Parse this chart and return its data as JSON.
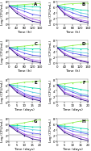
{
  "panels": [
    {
      "label": "A",
      "xlabel": "Time (h)",
      "ylabel": "Log (CFU/mL)",
      "xlim": [
        0,
        160
      ],
      "ylim": [
        0,
        8
      ],
      "xticks": [
        0,
        40,
        80,
        120,
        160
      ],
      "yticks": [
        0,
        2,
        4,
        6,
        8
      ],
      "hband": [
        1.8,
        2.5
      ],
      "lines": [
        {
          "x": [
            0,
            40,
            80,
            120,
            160
          ],
          "y": [
            6.5,
            6.7,
            6.9,
            7.1,
            7.2
          ],
          "color": "#88ee44",
          "marker": "s",
          "ls": "-"
        },
        {
          "x": [
            0,
            40,
            80,
            120,
            160
          ],
          "y": [
            6.5,
            6.4,
            6.3,
            6.1,
            6.0
          ],
          "color": "#00ddaa",
          "marker": "s",
          "ls": "-"
        },
        {
          "x": [
            0,
            40,
            80,
            120,
            160
          ],
          "y": [
            6.5,
            6.0,
            5.5,
            5.0,
            4.7
          ],
          "color": "#55ccdd",
          "marker": "s",
          "ls": "-"
        },
        {
          "x": [
            0,
            40,
            80,
            120,
            160
          ],
          "y": [
            6.5,
            5.5,
            4.5,
            3.5,
            3.0
          ],
          "color": "#5555ee",
          "marker": "s",
          "ls": "-"
        },
        {
          "x": [
            0,
            40,
            80,
            120,
            160
          ],
          "y": [
            6.5,
            4.5,
            3.0,
            1.8,
            1.2
          ],
          "color": "#aa55ee",
          "marker": "s",
          "ls": "-"
        },
        {
          "x": [
            0,
            40,
            80,
            120,
            160
          ],
          "y": [
            6.5,
            3.8,
            2.2,
            1.0,
            0.5
          ],
          "color": "#220077",
          "marker": "s",
          "ls": "-"
        }
      ]
    },
    {
      "label": "B",
      "xlabel": "Time (h)",
      "ylabel": "Log (CFU/mL)",
      "xlim": [
        0,
        160
      ],
      "ylim": [
        0,
        8
      ],
      "xticks": [
        0,
        40,
        80,
        120,
        160
      ],
      "yticks": [
        0,
        2,
        4,
        6,
        8
      ],
      "hband": [
        1.8,
        2.5
      ],
      "lines": [
        {
          "x": [
            0,
            40,
            80,
            120,
            160
          ],
          "y": [
            6.5,
            7.0,
            7.2,
            7.3,
            7.4
          ],
          "color": "#88ee44",
          "marker": "s",
          "ls": "-"
        },
        {
          "x": [
            0,
            40,
            80,
            120,
            160
          ],
          "y": [
            6.5,
            6.0,
            5.5,
            5.0,
            4.8
          ],
          "color": "#00ddaa",
          "marker": "s",
          "ls": "-"
        },
        {
          "x": [
            0,
            40,
            80,
            120,
            160
          ],
          "y": [
            6.5,
            5.5,
            5.0,
            4.0,
            3.5
          ],
          "color": "#55ccdd",
          "marker": "s",
          "ls": "-"
        },
        {
          "x": [
            0,
            40,
            80,
            120,
            160
          ],
          "y": [
            6.5,
            5.0,
            4.0,
            3.0,
            2.5
          ],
          "color": "#5555ee",
          "marker": "s",
          "ls": "-"
        },
        {
          "x": [
            0,
            40,
            80,
            120,
            160
          ],
          "y": [
            6.5,
            4.0,
            2.5,
            1.5,
            1.0
          ],
          "color": "#aa55ee",
          "marker": "s",
          "ls": "-"
        },
        {
          "x": [
            0,
            40,
            80,
            120,
            160
          ],
          "y": [
            6.5,
            3.5,
            2.0,
            1.0,
            0.5
          ],
          "color": "#220077",
          "marker": "s",
          "ls": "-"
        }
      ]
    },
    {
      "label": "C",
      "xlabel": "Time (h)",
      "ylabel": "Log (CFU/mL)",
      "xlim": [
        0,
        160
      ],
      "ylim": [
        0,
        8
      ],
      "xticks": [
        0,
        40,
        80,
        120,
        160
      ],
      "yticks": [
        0,
        2,
        4,
        6,
        8
      ],
      "hband": [
        1.8,
        2.5
      ],
      "lines": [
        {
          "x": [
            0,
            40,
            80,
            120,
            160
          ],
          "y": [
            5.5,
            5.8,
            6.0,
            6.3,
            6.5
          ],
          "color": "#88ee44",
          "marker": "s",
          "ls": "-"
        },
        {
          "x": [
            0,
            40,
            80,
            120,
            160
          ],
          "y": [
            5.5,
            5.3,
            5.2,
            5.0,
            5.0
          ],
          "color": "#00ddaa",
          "marker": "s",
          "ls": "-"
        },
        {
          "x": [
            0,
            40,
            80,
            120,
            160
          ],
          "y": [
            5.5,
            5.0,
            4.5,
            4.0,
            3.8
          ],
          "color": "#55ccdd",
          "marker": "s",
          "ls": "-"
        },
        {
          "x": [
            0,
            40,
            80,
            120,
            160
          ],
          "y": [
            5.5,
            4.5,
            3.5,
            2.8,
            2.5
          ],
          "color": "#5555ee",
          "marker": "s",
          "ls": "-"
        },
        {
          "x": [
            0,
            40,
            80,
            120,
            160
          ],
          "y": [
            5.5,
            3.5,
            2.0,
            1.2,
            0.8
          ],
          "color": "#aa55ee",
          "marker": "s",
          "ls": "-"
        },
        {
          "x": [
            0,
            40,
            80,
            120,
            160
          ],
          "y": [
            5.5,
            3.0,
            1.5,
            0.6,
            0.2
          ],
          "color": "#220077",
          "marker": "s",
          "ls": "-"
        }
      ]
    },
    {
      "label": "D",
      "xlabel": "Time (h)",
      "ylabel": "Log (CFU/mL)",
      "xlim": [
        0,
        160
      ],
      "ylim": [
        0,
        8
      ],
      "xticks": [
        0,
        40,
        80,
        120,
        160
      ],
      "yticks": [
        0,
        2,
        4,
        6,
        8
      ],
      "hband": [
        1.8,
        2.5
      ],
      "lines": [
        {
          "x": [
            0,
            40,
            80,
            120,
            160
          ],
          "y": [
            5.5,
            5.8,
            6.2,
            6.5,
            6.8
          ],
          "color": "#88ee44",
          "marker": "s",
          "ls": "-"
        },
        {
          "x": [
            0,
            40,
            80,
            120,
            160
          ],
          "y": [
            5.5,
            5.3,
            5.2,
            5.0,
            5.0
          ],
          "color": "#00ddaa",
          "marker": "s",
          "ls": "-"
        },
        {
          "x": [
            0,
            40,
            80,
            120,
            160
          ],
          "y": [
            5.5,
            4.8,
            4.2,
            3.8,
            3.5
          ],
          "color": "#55ccdd",
          "marker": "s",
          "ls": "-"
        },
        {
          "x": [
            0,
            40,
            80,
            120,
            160
          ],
          "y": [
            5.5,
            4.5,
            3.5,
            3.0,
            2.5
          ],
          "color": "#5555ee",
          "marker": "s",
          "ls": "-"
        },
        {
          "x": [
            0,
            40,
            80,
            120,
            160
          ],
          "y": [
            5.5,
            3.5,
            2.0,
            1.0,
            0.5
          ],
          "color": "#aa55ee",
          "marker": "s",
          "ls": "-"
        },
        {
          "x": [
            0,
            40,
            80,
            120,
            160
          ],
          "y": [
            5.5,
            3.0,
            1.8,
            0.8,
            0.2
          ],
          "color": "#220077",
          "marker": "s",
          "ls": "-"
        }
      ]
    },
    {
      "label": "E",
      "xlabel": "Time (days)",
      "ylabel": "Log (CFU/mL)",
      "xlim": [
        0,
        20
      ],
      "ylim": [
        0,
        8
      ],
      "xticks": [
        0,
        5,
        10,
        15,
        20
      ],
      "yticks": [
        0,
        2,
        4,
        6,
        8
      ],
      "hband": [
        1.8,
        2.5
      ],
      "lines": [
        {
          "x": [
            0,
            5,
            10,
            15,
            20
          ],
          "y": [
            6.2,
            6.6,
            7.0,
            7.2,
            7.5
          ],
          "color": "#88ee44",
          "marker": "s",
          "ls": "-"
        },
        {
          "x": [
            0,
            5,
            10,
            15,
            20
          ],
          "y": [
            6.2,
            5.8,
            5.4,
            5.0,
            4.8
          ],
          "color": "#00ddaa",
          "marker": "s",
          "ls": "-"
        },
        {
          "x": [
            0,
            5,
            10,
            15,
            20
          ],
          "y": [
            6.2,
            5.2,
            4.2,
            3.5,
            3.0
          ],
          "color": "#55ccdd",
          "marker": "s",
          "ls": "-"
        },
        {
          "x": [
            0,
            5,
            10,
            15,
            20
          ],
          "y": [
            6.2,
            4.5,
            3.0,
            2.0,
            1.5
          ],
          "color": "#5555ee",
          "marker": "s",
          "ls": "-"
        },
        {
          "x": [
            0,
            5,
            10,
            15,
            20
          ],
          "y": [
            6.2,
            4.0,
            2.5,
            1.5,
            1.0
          ],
          "color": "#aa55ee",
          "marker": "s",
          "ls": "-"
        },
        {
          "x": [
            0,
            5,
            10,
            15,
            20
          ],
          "y": [
            6.2,
            3.5,
            2.0,
            1.0,
            0.5
          ],
          "color": "#220077",
          "marker": "s",
          "ls": "-"
        }
      ]
    },
    {
      "label": "F",
      "xlabel": "Time (days)",
      "ylabel": "Log (CFU/mL)",
      "xlim": [
        0,
        20
      ],
      "ylim": [
        0,
        8
      ],
      "xticks": [
        0,
        5,
        10,
        15,
        20
      ],
      "yticks": [
        0,
        2,
        4,
        6,
        8
      ],
      "hband": [
        1.8,
        2.5
      ],
      "lines": [
        {
          "x": [
            0,
            5,
            10,
            15,
            20
          ],
          "y": [
            6.2,
            6.5,
            6.8,
            7.0,
            7.2
          ],
          "color": "#88ee44",
          "marker": "s",
          "ls": "-"
        },
        {
          "x": [
            0,
            5,
            10,
            15,
            20
          ],
          "y": [
            6.2,
            5.5,
            5.0,
            4.5,
            4.0
          ],
          "color": "#00ddaa",
          "marker": "s",
          "ls": "-"
        },
        {
          "x": [
            0,
            5,
            10,
            15,
            20
          ],
          "y": [
            6.2,
            5.0,
            4.0,
            3.0,
            2.5
          ],
          "color": "#55ccdd",
          "marker": "s",
          "ls": "-"
        },
        {
          "x": [
            0,
            5,
            10,
            15,
            20
          ],
          "y": [
            6.2,
            4.5,
            3.5,
            2.5,
            2.0
          ],
          "color": "#5555ee",
          "marker": "s",
          "ls": "-"
        },
        {
          "x": [
            0,
            5,
            10,
            15,
            20
          ],
          "y": [
            6.2,
            3.5,
            2.5,
            1.5,
            0.8
          ],
          "color": "#aa55ee",
          "marker": "s",
          "ls": "-"
        },
        {
          "x": [
            0,
            5,
            10,
            15,
            20
          ],
          "y": [
            6.2,
            3.0,
            2.0,
            1.0,
            0.3
          ],
          "color": "#220077",
          "marker": "s",
          "ls": "-"
        }
      ]
    },
    {
      "label": "G",
      "xlabel": "Time (days)",
      "ylabel": "Log (CFU/mL)",
      "xlim": [
        0,
        20
      ],
      "ylim": [
        0,
        8
      ],
      "xticks": [
        0,
        5,
        10,
        15,
        20
      ],
      "yticks": [
        0,
        2,
        4,
        6,
        8
      ],
      "hband": [
        1.8,
        2.5
      ],
      "lines": [
        {
          "x": [
            0,
            5,
            10,
            15,
            20
          ],
          "y": [
            5.5,
            6.0,
            6.5,
            7.0,
            7.5
          ],
          "color": "#88ee44",
          "marker": "s",
          "ls": "-"
        },
        {
          "x": [
            0,
            5,
            10,
            15,
            20
          ],
          "y": [
            5.5,
            5.5,
            5.2,
            5.0,
            5.0
          ],
          "color": "#00ddaa",
          "marker": "s",
          "ls": "-"
        },
        {
          "x": [
            0,
            5,
            10,
            15,
            20
          ],
          "y": [
            5.5,
            5.0,
            4.5,
            4.0,
            3.8
          ],
          "color": "#55ccdd",
          "marker": "s",
          "ls": "-"
        },
        {
          "x": [
            0,
            5,
            10,
            15,
            20
          ],
          "y": [
            5.5,
            4.5,
            3.5,
            2.8,
            2.5
          ],
          "color": "#5555ee",
          "marker": "s",
          "ls": "-"
        },
        {
          "x": [
            0,
            5,
            10,
            15,
            20
          ],
          "y": [
            5.5,
            4.0,
            2.5,
            1.5,
            1.0
          ],
          "color": "#aa55ee",
          "marker": "s",
          "ls": "-"
        },
        {
          "x": [
            0,
            5,
            10,
            15,
            20
          ],
          "y": [
            5.5,
            3.5,
            2.0,
            0.8,
            0.3
          ],
          "color": "#220077",
          "marker": "s",
          "ls": "-"
        }
      ]
    },
    {
      "label": "H",
      "xlabel": "Time (days)",
      "ylabel": "Log (CFU/mL)",
      "xlim": [
        0,
        20
      ],
      "ylim": [
        0,
        8
      ],
      "xticks": [
        0,
        5,
        10,
        15,
        20
      ],
      "yticks": [
        0,
        2,
        4,
        6,
        8
      ],
      "hband": [
        1.8,
        2.5
      ],
      "lines": [
        {
          "x": [
            0,
            5,
            10,
            15,
            20
          ],
          "y": [
            5.5,
            6.0,
            6.5,
            7.0,
            7.3
          ],
          "color": "#88ee44",
          "marker": "s",
          "ls": "-"
        },
        {
          "x": [
            0,
            5,
            10,
            15,
            20
          ],
          "y": [
            5.5,
            5.3,
            5.0,
            4.5,
            4.3
          ],
          "color": "#00ddaa",
          "marker": "s",
          "ls": "-"
        },
        {
          "x": [
            0,
            5,
            10,
            15,
            20
          ],
          "y": [
            5.5,
            5.0,
            4.2,
            3.5,
            3.0
          ],
          "color": "#55ccdd",
          "marker": "s",
          "ls": "-"
        },
        {
          "x": [
            0,
            5,
            10,
            15,
            20
          ],
          "y": [
            5.5,
            4.5,
            3.5,
            3.0,
            2.5
          ],
          "color": "#5555ee",
          "marker": "s",
          "ls": "-"
        },
        {
          "x": [
            0,
            5,
            10,
            15,
            20
          ],
          "y": [
            5.5,
            3.5,
            2.5,
            1.5,
            0.8
          ],
          "color": "#aa55ee",
          "marker": "s",
          "ls": "-"
        },
        {
          "x": [
            0,
            5,
            10,
            15,
            20
          ],
          "y": [
            5.5,
            3.0,
            1.8,
            0.8,
            0.2
          ],
          "color": "#220077",
          "marker": "s",
          "ls": "-"
        }
      ]
    }
  ],
  "fig_bg": "#ffffff",
  "panel_bg": "#ffffff",
  "hband_color": "#cccccc",
  "hband_alpha": 0.6,
  "fontsize_label": 3.2,
  "fontsize_tick": 2.8,
  "fontsize_panel_label": 4.0,
  "linewidth": 0.55,
  "markersize": 1.0
}
